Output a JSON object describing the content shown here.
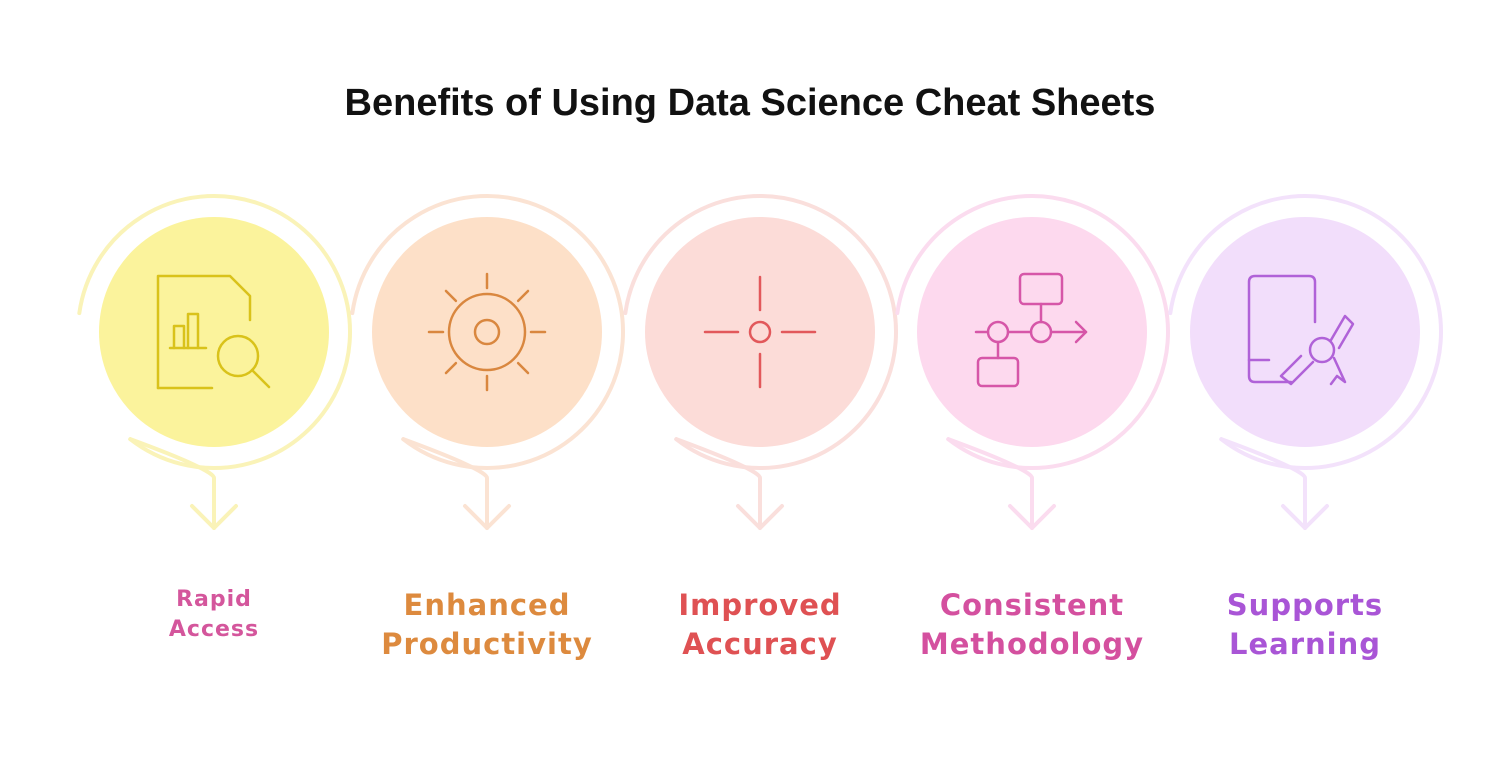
{
  "title": "Benefits of Using Data Science Cheat Sheets",
  "steps": [
    {
      "id": "rapid-access",
      "lines": [
        "Rapid",
        "Access"
      ],
      "icon": "document-search-icon",
      "colors": {
        "circle": "#fbf39c",
        "ring": "#faf3b8",
        "icon": "#d9c21a",
        "text": "#d4569c"
      }
    },
    {
      "id": "enhanced-productivity",
      "lines": [
        "Enhanced",
        "Productivity"
      ],
      "icon": "sun-gear-icon",
      "colors": {
        "circle": "#fde0c8",
        "ring": "#fbe3d3",
        "icon": "#d9873f",
        "text": "#dd8a3e"
      }
    },
    {
      "id": "improved-accuracy",
      "lines": [
        "Improved",
        "Accuracy"
      ],
      "icon": "crosshair-icon",
      "colors": {
        "circle": "#fcdcd8",
        "ring": "#fadfdc",
        "icon": "#e2585b",
        "text": "#df5153"
      }
    },
    {
      "id": "consistent-methodology",
      "lines": [
        "Consistent",
        "Methodology"
      ],
      "icon": "flowchart-icon",
      "colors": {
        "circle": "#fdd9ee",
        "ring": "#fbdcef",
        "icon": "#d656a8",
        "text": "#d4509f"
      }
    },
    {
      "id": "supports-learning",
      "lines": [
        "Supports",
        "Learning"
      ],
      "icon": "certificate-icon",
      "colors": {
        "circle": "#f2defb",
        "ring": "#f3e2fb",
        "icon": "#b062d8",
        "text": "#a955d6"
      }
    }
  ]
}
